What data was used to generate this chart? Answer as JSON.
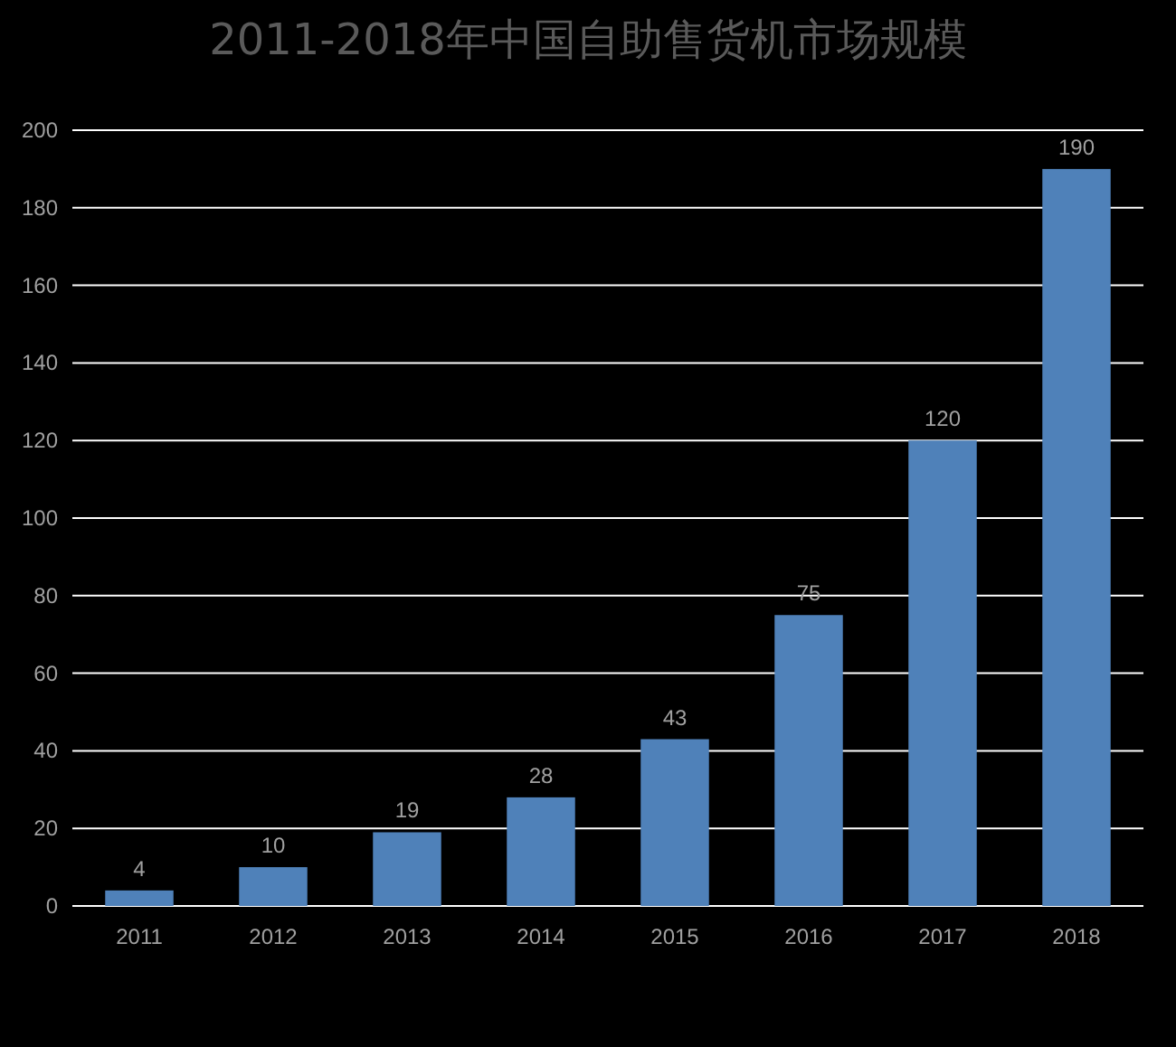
{
  "chart_data": {
    "type": "bar",
    "title": "2011-2018年中国自助售货机市场规模",
    "categories": [
      "2011",
      "2012",
      "2013",
      "2014",
      "2015",
      "2016",
      "2017",
      "2018"
    ],
    "values": [
      4,
      10,
      19,
      28,
      43,
      75,
      120,
      190
    ],
    "color": "#4f81b9",
    "ylim": [
      0,
      200
    ],
    "yticks": [
      0,
      20,
      40,
      60,
      80,
      100,
      120,
      140,
      160,
      180,
      200
    ],
    "grid": "y",
    "data_labels": true
  }
}
